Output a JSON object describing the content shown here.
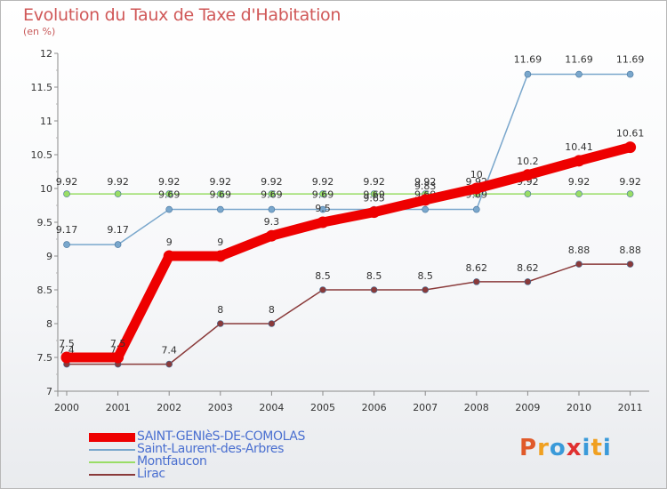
{
  "header": {
    "title": "Evolution du Taux de Taxe d'Habitation",
    "subtitle": "(en %)"
  },
  "logo": {
    "text": "Proxiti",
    "colors": [
      "#e05a2a",
      "#f0a020",
      "#3a9ad9",
      "#e03030",
      "#3a9ad9",
      "#f0a020",
      "#3a9ad9"
    ]
  },
  "chart_data": {
    "type": "line",
    "title": "Evolution du Taux de Taxe d'Habitation",
    "ylabel": "(en %)",
    "xlabel": "",
    "x": [
      "2000",
      "2001",
      "2002",
      "2003",
      "2004",
      "2005",
      "2006",
      "2007",
      "2008",
      "2009",
      "2010",
      "2011"
    ],
    "ylim": [
      7,
      12
    ],
    "yticks": [
      "7",
      "7.5",
      "8",
      "8.5",
      "9",
      "9.5",
      "10",
      "10.5",
      "11",
      "11.5",
      "12"
    ],
    "grid": false,
    "legend_position": "bottom-left",
    "series": [
      {
        "name": "SAINT-GENIèS-DE-COMOLAS",
        "color": "#ee0000",
        "values": [
          7.5,
          7.5,
          9,
          9,
          9.3,
          9.5,
          9.65,
          9.83,
          10,
          10.2,
          10.41,
          10.61
        ],
        "labels": [
          "7.5",
          "7.5",
          "9",
          "9",
          "9.3",
          "9.5",
          "9.65",
          "9.83",
          "10",
          "10.2",
          "10.41",
          "10.61"
        ]
      },
      {
        "name": "Saint-Laurent-des-Arbres",
        "color": "#7aa7cc",
        "values": [
          9.17,
          9.17,
          9.69,
          9.69,
          9.69,
          9.69,
          9.69,
          9.69,
          9.69,
          11.69,
          11.69,
          11.69
        ],
        "labels": [
          "9.17",
          "9.17",
          "9.69",
          "9.69",
          "9.69",
          "9.69",
          "9.69",
          "9.69",
          "9.69",
          "11.69",
          "11.69",
          "11.69"
        ]
      },
      {
        "name": "Montfaucon",
        "color": "#99dd66",
        "values": [
          9.92,
          9.92,
          9.92,
          9.92,
          9.92,
          9.92,
          9.92,
          9.92,
          9.92,
          9.92,
          9.92,
          9.92
        ],
        "labels": [
          "9.92",
          "9.92",
          "9.92",
          "9.92",
          "9.92",
          "9.92",
          "9.92",
          "9.92",
          "9.92",
          "9.92",
          "9.92",
          "9.92"
        ]
      },
      {
        "name": "Lirac",
        "color": "#8a3a3a",
        "values": [
          7.4,
          7.4,
          7.4,
          8,
          8,
          8.5,
          8.5,
          8.5,
          8.62,
          8.62,
          8.88,
          8.88
        ],
        "labels": [
          "7.4",
          "7.4",
          "7.4",
          "8",
          "8",
          "8.5",
          "8.5",
          "8.5",
          "8.62",
          "8.62",
          "8.88",
          "8.88"
        ]
      }
    ]
  }
}
